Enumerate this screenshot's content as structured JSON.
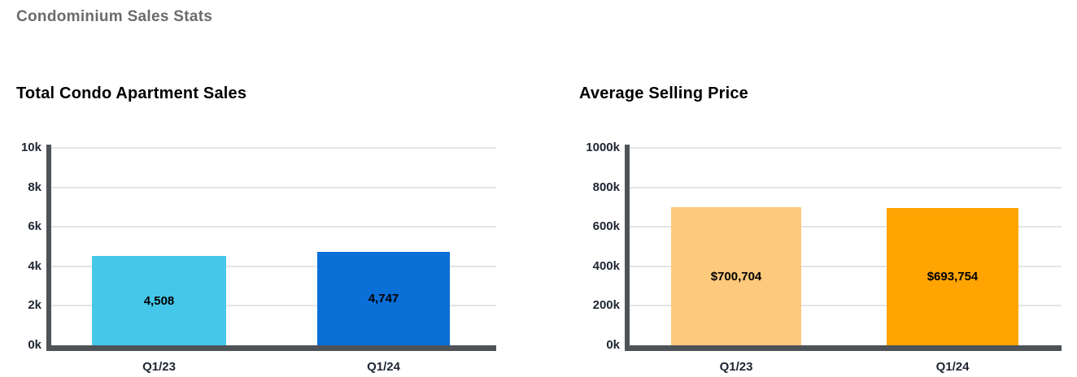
{
  "header": {
    "title": "Condominium Sales Stats"
  },
  "chart_data": [
    {
      "type": "bar",
      "title": "Total Condo Apartment Sales",
      "categories": [
        "Q1/23",
        "Q1/24"
      ],
      "values": [
        4508,
        4747
      ],
      "value_labels": [
        "4,508",
        "4,747"
      ],
      "bar_colors": [
        "#45c7ea",
        "#0a6fd6"
      ],
      "xlabel": "",
      "ylabel": "",
      "ylim": [
        0,
        10000
      ],
      "ytick_labels": [
        "0k",
        "2k",
        "4k",
        "6k",
        "8k",
        "10k"
      ],
      "grid": true,
      "legend": "none"
    },
    {
      "type": "bar",
      "title": "Average Selling Price",
      "categories": [
        "Q1/23",
        "Q1/24"
      ],
      "values": [
        700704,
        693754
      ],
      "value_labels": [
        "$700,704",
        "$693,754"
      ],
      "bar_colors": [
        "#fdc97c",
        "#ffa400"
      ],
      "xlabel": "",
      "ylabel": "",
      "ylim": [
        0,
        1000000
      ],
      "ytick_labels": [
        "0k",
        "200k",
        "400k",
        "600k",
        "800k",
        "1000k"
      ],
      "grid": true,
      "legend": "none"
    }
  ],
  "colors": {
    "background": "#ffffff",
    "header_text": "#6b6b6b",
    "title_text": "#000000",
    "axis_line": "#4e5358",
    "gridline": "#e4e4e4",
    "tick_label": "#1f2633",
    "bar_label": "#000000"
  }
}
